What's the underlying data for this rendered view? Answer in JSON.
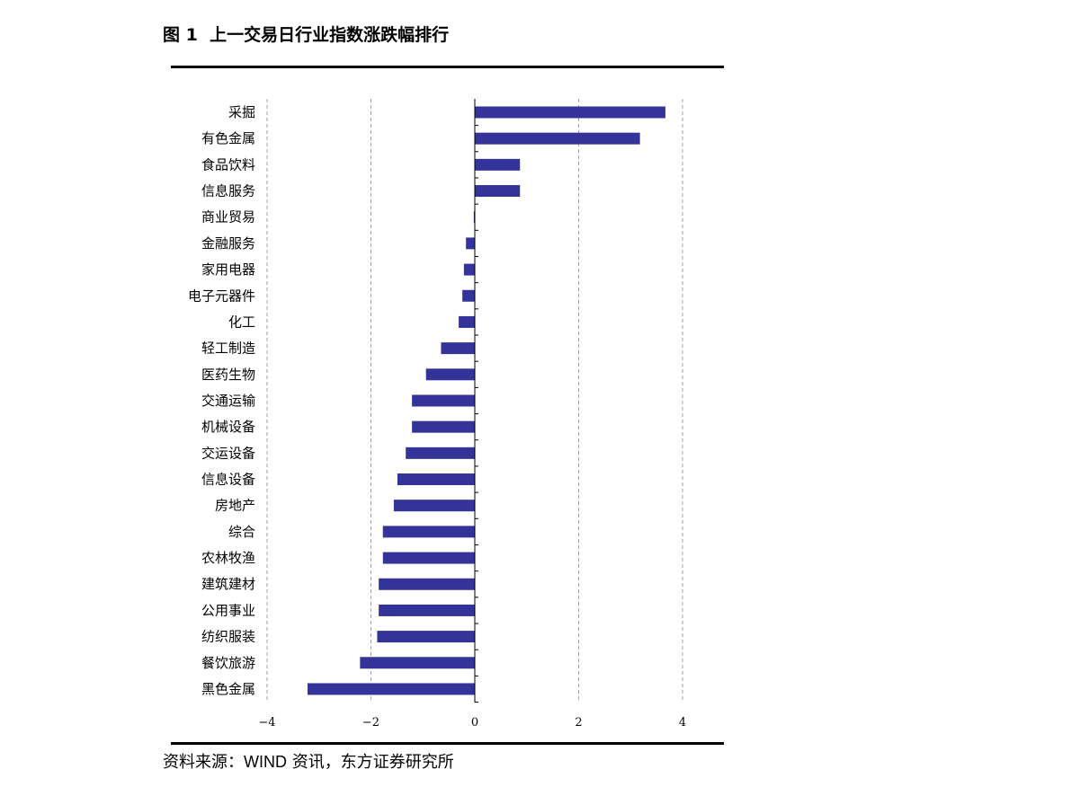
{
  "figure": {
    "label": "图 1",
    "title": "上一交易日行业指数涨跌幅排行"
  },
  "source": {
    "prefix": "资料来源：",
    "brand": "WIND",
    "suffix": " 资讯，东方证券研究所"
  },
  "colors": {
    "bar": "#333399",
    "grid": "#a0a0a0",
    "axis": "#000000"
  },
  "chart_data": {
    "type": "bar",
    "orientation": "horizontal",
    "categories": [
      "采掘",
      "有色金属",
      "食品饮料",
      "信息服务",
      "商业贸易",
      "金融服务",
      "家用电器",
      "电子元器件",
      "化工",
      "轻工制造",
      "医药生物",
      "交通运输",
      "机械设备",
      "交运设备",
      "信息设备",
      "房地产",
      "综合",
      "农林牧渔",
      "建筑建材",
      "公用事业",
      "纺织服装",
      "餐饮旅游",
      "黑色金属"
    ],
    "values": [
      3.67,
      3.18,
      0.87,
      0.87,
      -0.02,
      -0.17,
      -0.21,
      -0.24,
      -0.31,
      -0.65,
      -0.94,
      -1.21,
      -1.21,
      -1.33,
      -1.49,
      -1.56,
      -1.77,
      -1.77,
      -1.85,
      -1.85,
      -1.88,
      -2.21,
      -3.22
    ],
    "xlim": [
      -4,
      4
    ],
    "xticks": [
      -4,
      -2,
      0,
      2,
      4
    ],
    "xtick_labels": [
      "−4",
      "−2",
      "0",
      "2",
      "4"
    ],
    "grid": "vertical-dashed",
    "legend": "none"
  }
}
